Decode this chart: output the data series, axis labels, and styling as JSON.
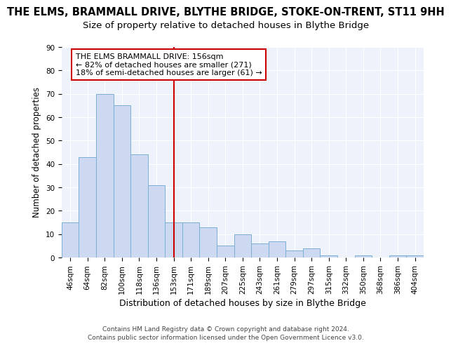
{
  "title": "THE ELMS, BRAMMALL DRIVE, BLYTHE BRIDGE, STOKE-ON-TRENT, ST11 9HH",
  "subtitle": "Size of property relative to detached houses in Blythe Bridge",
  "xlabel": "Distribution of detached houses by size in Blythe Bridge",
  "ylabel": "Number of detached properties",
  "categories": [
    "46sqm",
    "64sqm",
    "82sqm",
    "100sqm",
    "118sqm",
    "136sqm",
    "153sqm",
    "171sqm",
    "189sqm",
    "207sqm",
    "225sqm",
    "243sqm",
    "261sqm",
    "279sqm",
    "297sqm",
    "315sqm",
    "332sqm",
    "350sqm",
    "368sqm",
    "386sqm",
    "404sqm"
  ],
  "values": [
    15,
    43,
    70,
    65,
    44,
    31,
    15,
    15,
    13,
    5,
    10,
    6,
    7,
    3,
    4,
    1,
    0,
    1,
    0,
    1,
    1
  ],
  "bar_color": "#ccd9f0",
  "bar_edge_color": "#7bafd4",
  "vline_x_index": 6,
  "vline_color": "#cc0000",
  "annotation_line1": "THE ELMS BRAMMALL DRIVE: 156sqm",
  "annotation_line2": "← 82% of detached houses are smaller (271)",
  "annotation_line3": "18% of semi-detached houses are larger (61) →",
  "annotation_box_color": "#ffffff",
  "annotation_box_edge_color": "#cc0000",
  "ylim": [
    0,
    90
  ],
  "yticks": [
    0,
    10,
    20,
    30,
    40,
    50,
    60,
    70,
    80,
    90
  ],
  "background_color": "#eef2fb",
  "footer_line1": "Contains HM Land Registry data © Crown copyright and database right 2024.",
  "footer_line2": "Contains public sector information licensed under the Open Government Licence v3.0.",
  "title_fontsize": 10.5,
  "subtitle_fontsize": 9.5,
  "xlabel_fontsize": 9,
  "ylabel_fontsize": 8.5,
  "tick_fontsize": 7.5,
  "annotation_fontsize": 8,
  "footer_fontsize": 6.5
}
